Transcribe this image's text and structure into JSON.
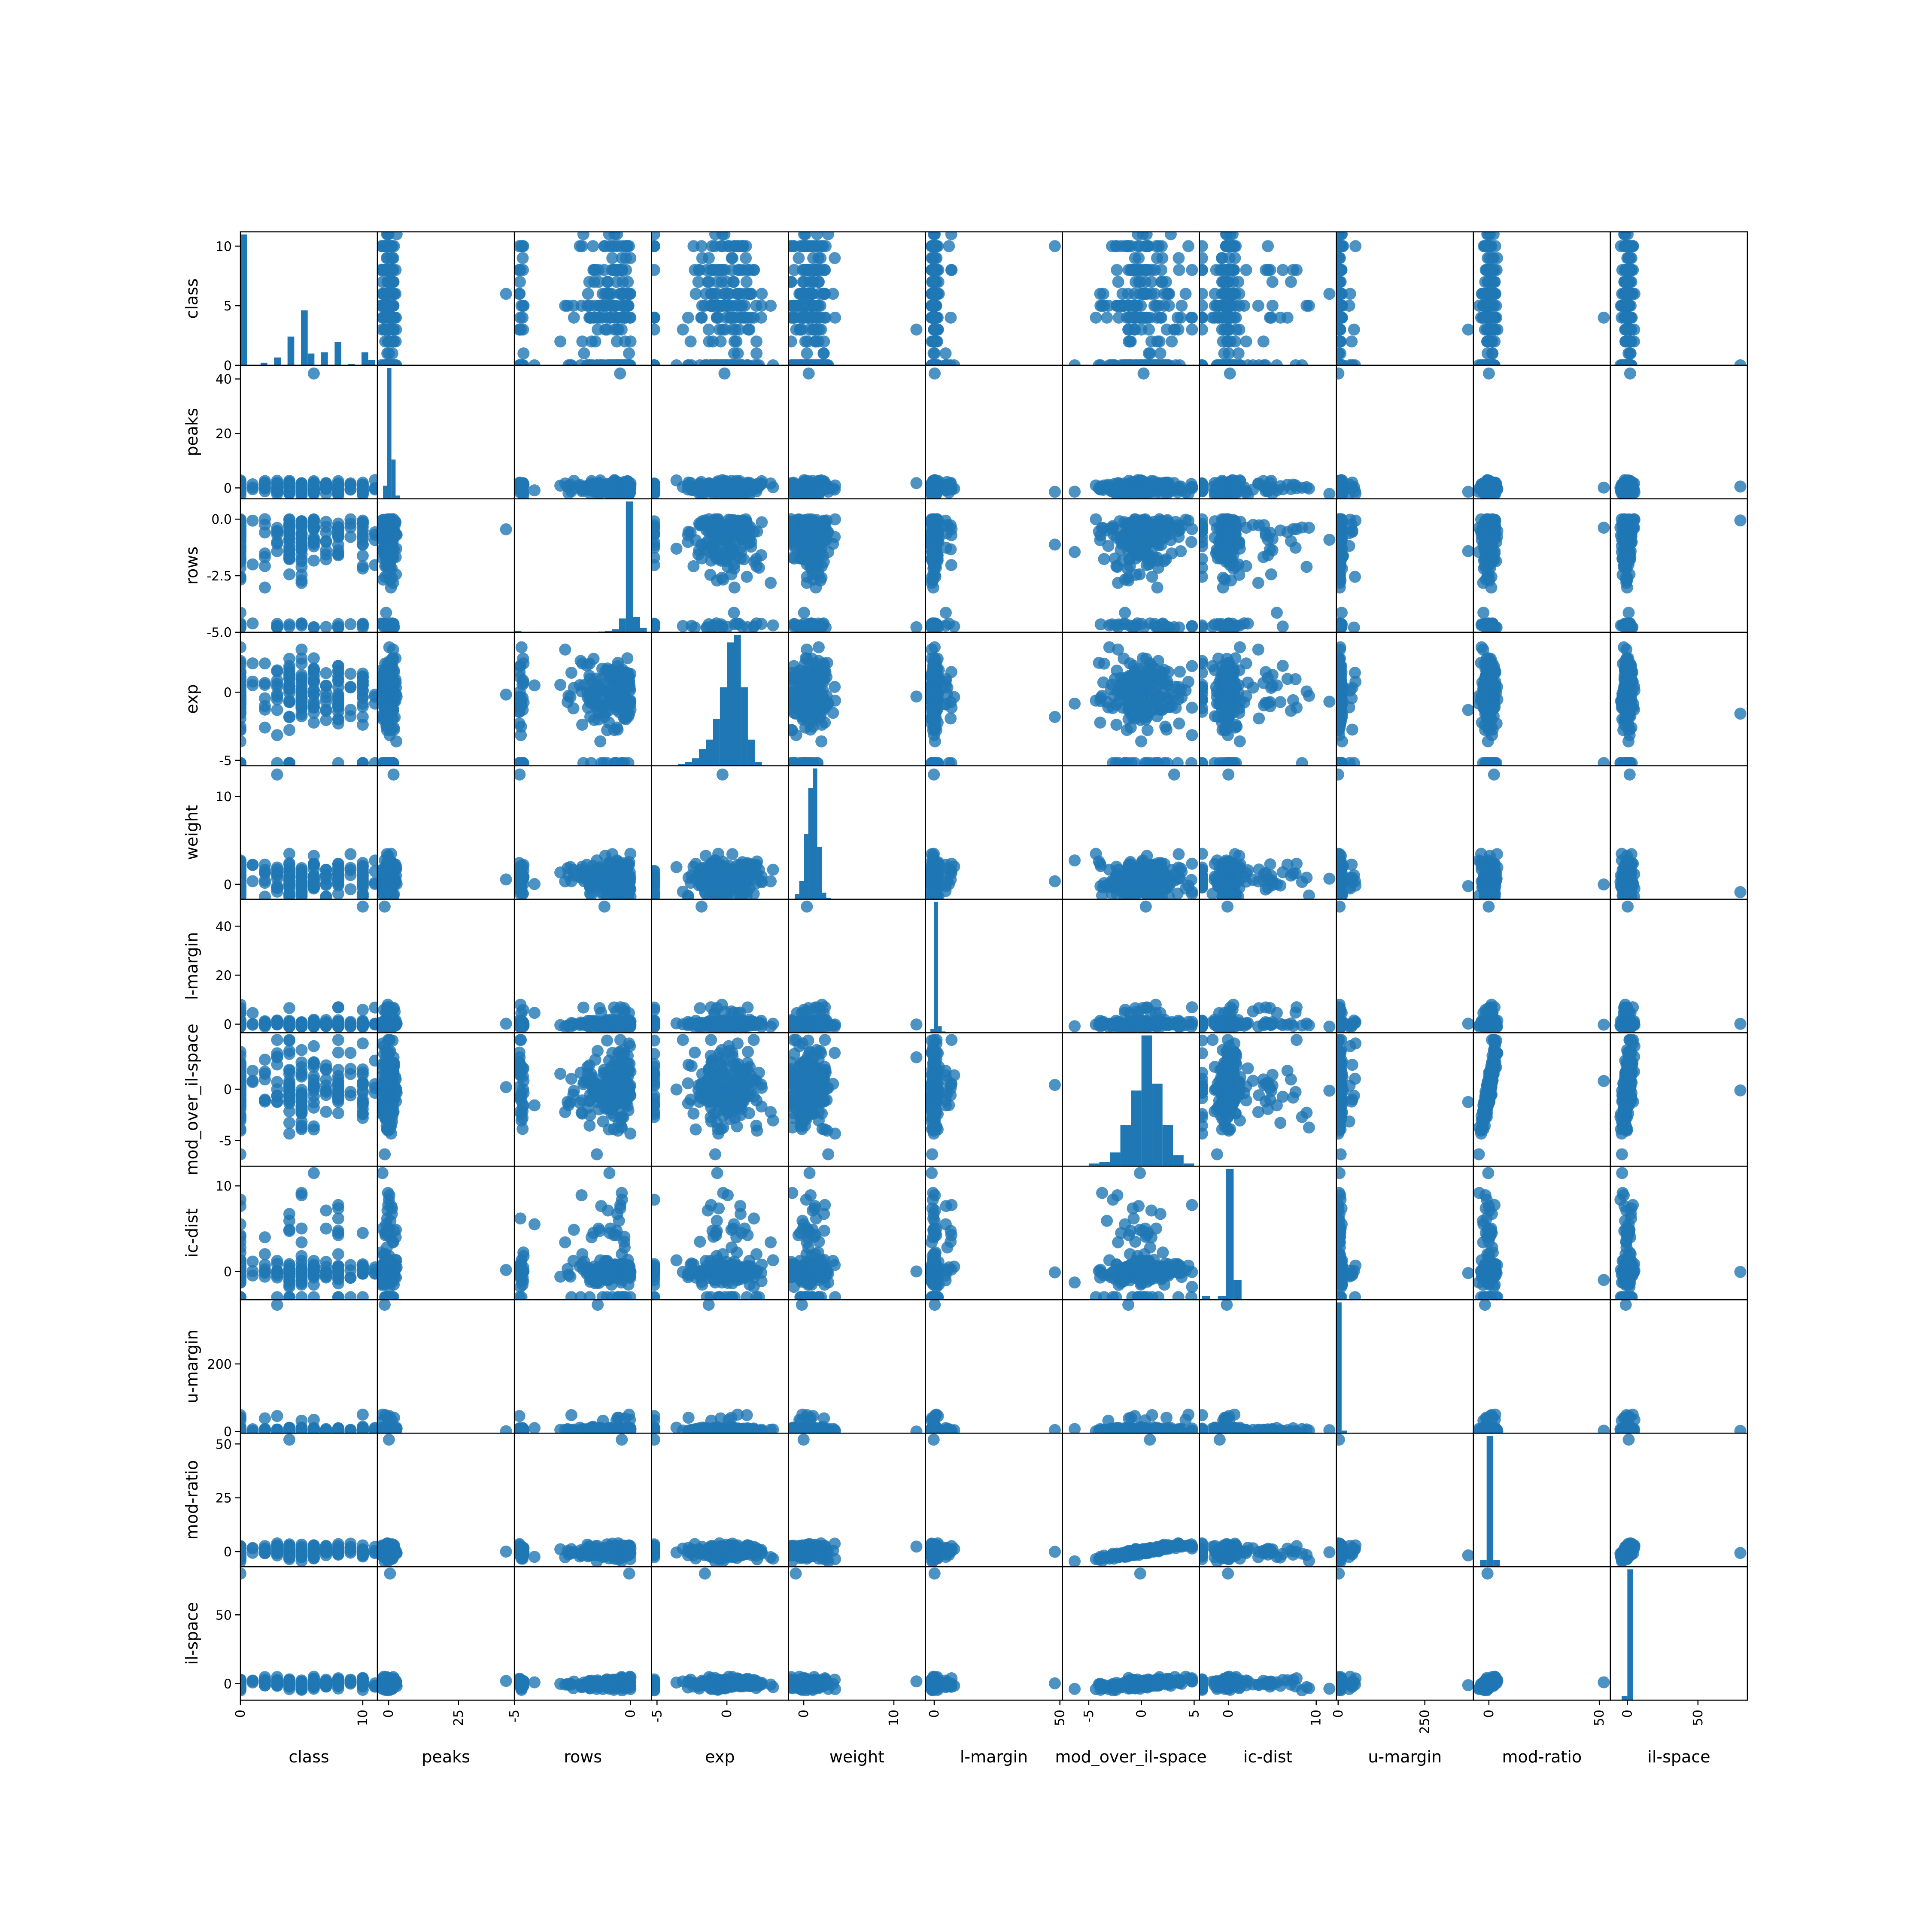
{
  "chart_data": {
    "type": "scatter",
    "title": "",
    "variables": [
      "class",
      "peaks",
      "rows",
      "exp",
      "weight",
      "l-margin",
      "mod_over_il-space",
      "ic-dist",
      "u-margin",
      "mod-ratio",
      "il-space"
    ],
    "ranges": {
      "class": [
        0,
        11.2
      ],
      "peaks": [
        -4,
        45
      ],
      "rows": [
        -5,
        0.9
      ],
      "exp": [
        -5.4,
        4.4
      ],
      "weight": [
        -1.7,
        13.5
      ],
      "l-margin": [
        -3.5,
        51
      ],
      "mod_over_il-space": [
        -7.5,
        5.5
      ],
      "ic-dist": [
        -3.3,
        12.3
      ],
      "u-margin": [
        -5,
        390
      ],
      "mod-ratio": [
        -7,
        55
      ],
      "il-space": [
        -12,
        85
      ]
    },
    "x_ticks": {
      "class": [
        0,
        10
      ],
      "peaks": [
        0,
        25
      ],
      "rows": [
        -5,
        0
      ],
      "exp": [
        -5,
        0
      ],
      "weight": [
        0,
        10
      ],
      "l-margin": [
        0,
        50
      ],
      "mod_over_il-space": [
        -5,
        0,
        5
      ],
      "ic-dist": [
        0,
        10
      ],
      "u-margin": [
        0,
        250
      ],
      "mod-ratio": [
        0,
        50
      ],
      "il-space": [
        0,
        50
      ]
    },
    "y_ticks": {
      "class": [
        0,
        5,
        10
      ],
      "peaks": [
        0,
        20,
        40
      ],
      "rows": [
        -5.0,
        -2.5,
        0.0
      ],
      "exp": [
        -5,
        0
      ],
      "weight": [
        0,
        10
      ],
      "l-margin": [
        0,
        20,
        40
      ],
      "mod_over_il-space": [
        -5,
        0
      ],
      "ic-dist": [
        0,
        10
      ],
      "u-margin": [
        0,
        200
      ],
      "mod-ratio": [
        0,
        25,
        50
      ],
      "il-space": [
        0,
        50
      ]
    },
    "y_tick_labels": {
      "rows": [
        "-5.0",
        "-2.5",
        "0.0"
      ]
    },
    "histograms": {
      "class": {
        "bins": [
          0,
          0.55,
          1.1,
          1.65,
          2.2,
          2.75,
          3.3,
          3.85,
          4.4,
          4.95,
          5.5,
          6.05,
          6.6,
          7.15,
          7.7,
          8.25,
          8.8,
          9.35,
          9.9,
          10.45,
          11.0
        ],
        "counts": [
          100,
          0,
          0,
          2,
          0,
          6,
          0,
          22,
          0,
          42,
          9,
          0,
          10,
          0,
          18,
          0,
          1,
          0,
          10,
          4
        ]
      },
      "peaks": {
        "bins": [
          -2,
          -0.5,
          1,
          2.5,
          4,
          5.5
        ],
        "counts": [
          4,
          40,
          12,
          1,
          0
        ]
      },
      "rows": {
        "bins": [
          -5,
          -4.7,
          -4.4,
          -4.1,
          -3.8,
          -3.5,
          -3.2,
          -2.9,
          -2.6,
          -2.3,
          -2.0,
          -1.7,
          -1.4,
          -1.1,
          -0.8,
          -0.5,
          -0.2,
          0.1,
          0.4,
          0.7
        ],
        "counts": [
          1,
          0,
          0,
          0,
          0,
          0,
          0,
          0,
          0,
          0,
          0,
          0,
          0.5,
          1,
          2,
          9,
          85,
          10,
          3
        ]
      },
      "exp": {
        "bins": [
          -3.5,
          -3.0,
          -2.5,
          -2.0,
          -1.5,
          -1.0,
          -0.5,
          0.0,
          0.5,
          1.0,
          1.5,
          2.0,
          2.5
        ],
        "counts": [
          1,
          2,
          4,
          9,
          14,
          25,
          42,
          66,
          70,
          42,
          14,
          2
        ]
      },
      "weight": {
        "bins": [
          -1,
          -0.5,
          0,
          0.5,
          1,
          1.5,
          2,
          2.5,
          3
        ],
        "counts": [
          4,
          14,
          50,
          85,
          100,
          40,
          5,
          1
        ]
      },
      "l-margin": {
        "bins": [
          -1.5,
          0,
          1.5,
          3,
          4.5
        ],
        "counts": [
          3,
          100,
          5,
          1
        ]
      },
      "mod_over_il-space": {
        "bins": [
          -5,
          -4,
          -3,
          -2,
          -1,
          0,
          1,
          2,
          3,
          4,
          5
        ],
        "counts": [
          2,
          3,
          10,
          30,
          55,
          95,
          60,
          30,
          8,
          2
        ]
      },
      "ic-dist": {
        "bins": [
          -3,
          -2.1,
          -1.2,
          -0.3,
          0.6,
          1.5
        ],
        "counts": [
          3,
          0,
          3,
          100,
          15
        ]
      },
      "u-margin": {
        "bins": [
          -5,
          10,
          25
        ],
        "counts": [
          100,
          2
        ]
      },
      "mod-ratio": {
        "bins": [
          -4,
          -1,
          2,
          5
        ],
        "counts": [
          5,
          100,
          5
        ]
      },
      "il-space": {
        "bins": [
          -4,
          0,
          4
        ],
        "counts": [
          3,
          100
        ]
      }
    },
    "marker_color": "#1f77b4",
    "frame_color": "#000000",
    "grid": false
  }
}
